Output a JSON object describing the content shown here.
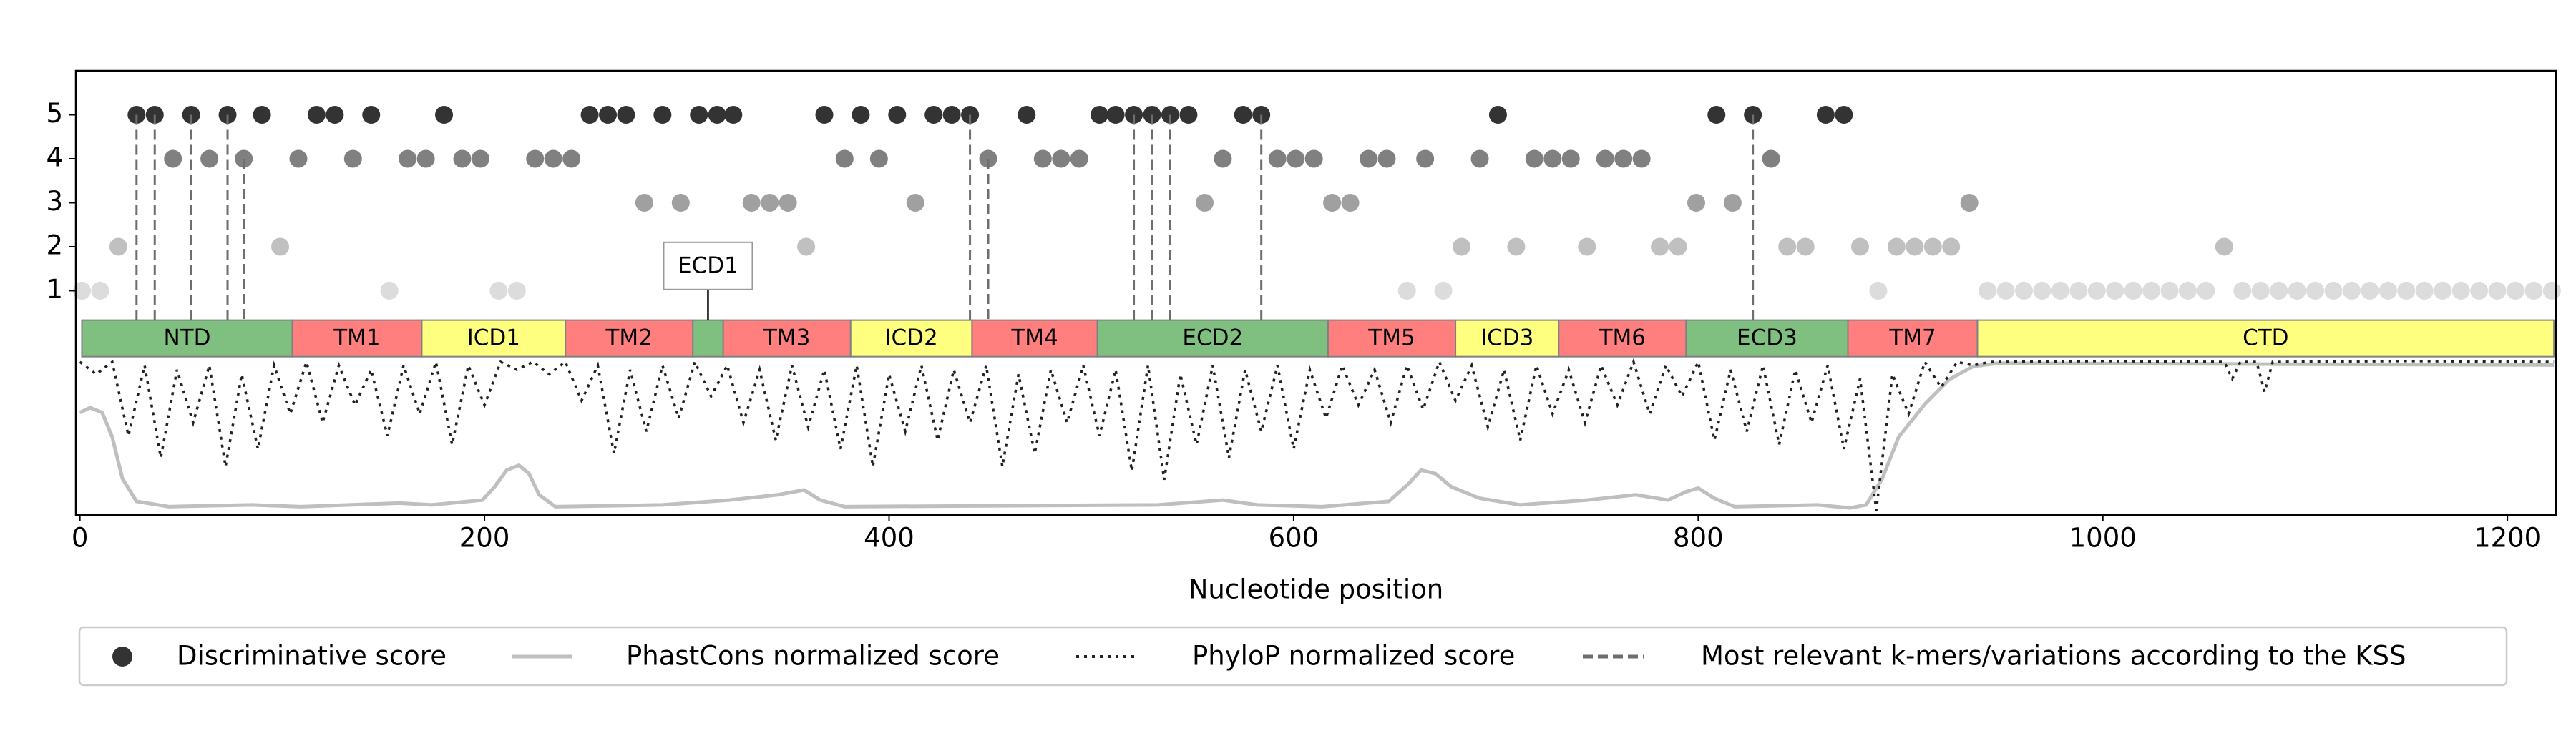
{
  "chart_data": {
    "type": "genome-track",
    "xlabel": "Nucleotide position",
    "xlim": [
      -2,
      1224
    ],
    "xticks": [
      0,
      200,
      400,
      600,
      800,
      1000,
      1200
    ],
    "ylim": [
      -4.1,
      6
    ],
    "yticks": [
      1,
      2,
      3,
      4,
      5
    ],
    "score_colors": [
      "#dcdcdc",
      "#c0c0c0",
      "#a0a0a0",
      "#808080",
      "#333333"
    ],
    "domains": [
      {
        "name": "NTD",
        "start": 1,
        "end": 105,
        "color": "#7fbf7f"
      },
      {
        "name": "TM1",
        "start": 105,
        "end": 169,
        "color": "#ff7f7f"
      },
      {
        "name": "ICD1",
        "start": 169,
        "end": 240,
        "color": "#ffff7f"
      },
      {
        "name": "TM2",
        "start": 240,
        "end": 303,
        "color": "#ff7f7f"
      },
      {
        "name": "ECD1",
        "start": 303,
        "end": 318,
        "color": "#7fbf7f"
      },
      {
        "name": "TM3",
        "start": 318,
        "end": 381,
        "color": "#ff7f7f"
      },
      {
        "name": "ICD2",
        "start": 381,
        "end": 441,
        "color": "#ffff7f"
      },
      {
        "name": "TM4",
        "start": 441,
        "end": 503,
        "color": "#ff7f7f"
      },
      {
        "name": "ECD2",
        "start": 503,
        "end": 617,
        "color": "#7fbf7f"
      },
      {
        "name": "TM5",
        "start": 617,
        "end": 680,
        "color": "#ff7f7f"
      },
      {
        "name": "ICD3",
        "start": 680,
        "end": 731,
        "color": "#ffff7f"
      },
      {
        "name": "TM6",
        "start": 731,
        "end": 794,
        "color": "#ff7f7f"
      },
      {
        "name": "ECD3",
        "start": 794,
        "end": 874,
        "color": "#7fbf7f"
      },
      {
        "name": "TM7",
        "start": 874,
        "end": 938,
        "color": "#ff7f7f"
      },
      {
        "name": "CTD",
        "start": 938,
        "end": 1223,
        "color": "#ffff7f"
      }
    ],
    "series": [
      {
        "name": "Discriminative score",
        "kind": "scatter",
        "color": "#333333",
        "x": [
          28,
          37,
          55,
          73,
          90,
          117,
          126,
          144,
          180,
          252,
          261,
          270,
          288,
          306,
          315,
          323,
          368,
          386,
          404,
          422,
          431,
          440,
          468,
          504,
          512,
          521,
          530,
          539,
          548,
          575,
          584,
          701,
          809,
          827,
          863,
          872,
          46,
          64,
          81,
          108,
          135,
          162,
          171,
          189,
          198,
          225,
          234,
          243,
          378,
          395,
          449,
          476,
          485,
          494,
          565,
          592,
          601,
          610,
          637,
          646,
          665,
          692,
          719,
          728,
          737,
          754,
          763,
          772,
          836,
          279,
          297,
          332,
          341,
          350,
          413,
          556,
          619,
          628,
          799,
          817,
          934,
          19,
          99,
          359,
          683,
          710,
          745,
          781,
          790,
          844,
          853,
          880,
          898,
          907,
          916,
          925,
          1060,
          1,
          10,
          153,
          207,
          216,
          656,
          674,
          889,
          943,
          952,
          961,
          970,
          979,
          988,
          997,
          1006,
          1015,
          1024,
          1033,
          1042,
          1051,
          1069,
          1078,
          1087,
          1096,
          1105,
          1114,
          1123,
          1132,
          1141,
          1150,
          1159,
          1168,
          1177,
          1186,
          1195,
          1204,
          1213,
          1222
        ],
        "values": [
          5,
          5,
          5,
          5,
          5,
          5,
          5,
          5,
          5,
          5,
          5,
          5,
          5,
          5,
          5,
          5,
          5,
          5,
          5,
          5,
          5,
          5,
          5,
          5,
          5,
          5,
          5,
          5,
          5,
          5,
          5,
          5,
          5,
          5,
          5,
          5,
          4,
          4,
          4,
          4,
          4,
          4,
          4,
          4,
          4,
          4,
          4,
          4,
          4,
          4,
          4,
          4,
          4,
          4,
          4,
          4,
          4,
          4,
          4,
          4,
          4,
          4,
          4,
          4,
          4,
          4,
          4,
          4,
          4,
          3,
          3,
          3,
          3,
          3,
          3,
          3,
          3,
          3,
          3,
          3,
          3,
          2,
          2,
          2,
          2,
          2,
          2,
          2,
          2,
          2,
          2,
          2,
          2,
          2,
          2,
          2,
          2,
          1,
          1,
          1,
          1,
          1,
          1,
          1,
          1,
          1,
          1,
          1,
          1,
          1,
          1,
          1,
          1,
          1,
          1,
          1,
          1,
          1,
          1,
          1,
          1,
          1,
          1,
          1,
          1,
          1,
          1,
          1,
          1,
          1,
          1,
          1,
          1,
          1,
          1,
          1
        ]
      },
      {
        "name": "PhastCons normalized score",
        "kind": "line",
        "dash": "solid",
        "color": "#bfbfbf",
        "x": [
          0,
          5,
          11,
          16,
          21,
          28,
          44,
          85,
          109,
          158,
          174,
          199,
          205,
          211,
          217,
          222,
          227,
          235,
          288,
          321,
          345,
          358,
          366,
          378,
          533,
          565,
          582,
          614,
          647,
          657,
          663,
          670,
          678,
          692,
          712,
          745,
          769,
          785,
          794,
          800,
          808,
          818,
          859,
          875,
          883,
          891,
          899,
          912,
          924,
          936,
          948,
          1223
        ],
        "values": [
          -1.77,
          -1.66,
          -1.77,
          -2.33,
          -3.27,
          -3.79,
          -3.91,
          -3.87,
          -3.91,
          -3.83,
          -3.87,
          -3.76,
          -3.46,
          -3.08,
          -2.97,
          -3.16,
          -3.64,
          -3.91,
          -3.87,
          -3.76,
          -3.64,
          -3.53,
          -3.76,
          -3.91,
          -3.87,
          -3.76,
          -3.87,
          -3.91,
          -3.79,
          -3.38,
          -3.08,
          -3.16,
          -3.46,
          -3.72,
          -3.87,
          -3.76,
          -3.64,
          -3.76,
          -3.57,
          -3.49,
          -3.72,
          -3.91,
          -3.87,
          -3.94,
          -3.87,
          -3.27,
          -2.33,
          -1.58,
          -1.02,
          -0.72,
          -0.65,
          -0.69
        ]
      },
      {
        "name": "PhyloP normalized score",
        "kind": "line",
        "dash": "dotted",
        "color": "#222222",
        "x": [
          0,
          8,
          16,
          24,
          32,
          40,
          48,
          56,
          64,
          72,
          80,
          88,
          96,
          104,
          112,
          120,
          128,
          136,
          144,
          152,
          160,
          168,
          176,
          184,
          192,
          200,
          208,
          216,
          224,
          232,
          240,
          248,
          256,
          264,
          272,
          280,
          288,
          296,
          304,
          312,
          320,
          328,
          336,
          344,
          352,
          360,
          368,
          376,
          384,
          392,
          400,
          408,
          416,
          424,
          432,
          440,
          448,
          456,
          464,
          472,
          480,
          488,
          496,
          504,
          512,
          520,
          528,
          536,
          544,
          552,
          560,
          568,
          576,
          584,
          592,
          600,
          608,
          616,
          624,
          632,
          640,
          648,
          656,
          664,
          672,
          680,
          688,
          696,
          704,
          712,
          720,
          728,
          736,
          744,
          752,
          760,
          768,
          776,
          784,
          792,
          800,
          808,
          816,
          824,
          832,
          840,
          848,
          856,
          864,
          872,
          880,
          888,
          896,
          904,
          912,
          920,
          928,
          936,
          944,
          1000,
          1060,
          1064,
          1068,
          1076,
          1080,
          1084,
          1150,
          1223
        ],
        "values": [
          -0.62,
          -0.9,
          -0.62,
          -2.3,
          -0.7,
          -2.8,
          -0.8,
          -2.0,
          -0.7,
          -3.0,
          -0.9,
          -2.6,
          -0.7,
          -1.8,
          -0.62,
          -2.0,
          -0.7,
          -1.6,
          -0.8,
          -2.3,
          -0.7,
          -1.8,
          -0.62,
          -2.5,
          -0.7,
          -1.6,
          -0.62,
          -0.8,
          -0.62,
          -0.9,
          -0.62,
          -1.5,
          -0.7,
          -2.7,
          -0.8,
          -2.2,
          -0.7,
          -1.9,
          -0.62,
          -1.4,
          -0.7,
          -2.0,
          -0.8,
          -2.4,
          -0.7,
          -2.1,
          -0.8,
          -2.6,
          -0.7,
          -3.0,
          -0.9,
          -2.2,
          -0.7,
          -2.4,
          -0.8,
          -2.0,
          -0.7,
          -3.0,
          -0.9,
          -2.7,
          -0.8,
          -2.0,
          -0.7,
          -2.3,
          -0.8,
          -3.1,
          -0.7,
          -3.3,
          -0.9,
          -2.5,
          -0.7,
          -2.8,
          -0.8,
          -2.2,
          -0.7,
          -2.6,
          -0.8,
          -1.9,
          -0.7,
          -1.6,
          -0.8,
          -2.0,
          -0.7,
          -1.7,
          -0.62,
          -1.5,
          -0.7,
          -2.1,
          -0.8,
          -2.4,
          -0.7,
          -1.8,
          -0.8,
          -2.0,
          -0.7,
          -1.6,
          -0.62,
          -1.8,
          -0.7,
          -1.4,
          -0.62,
          -2.4,
          -0.8,
          -2.2,
          -0.7,
          -2.5,
          -0.8,
          -2.0,
          -0.7,
          -2.6,
          -1.0,
          -4.0,
          -0.9,
          -1.8,
          -0.62,
          -1.2,
          -0.62,
          -0.7,
          -0.62,
          -0.6,
          -0.62,
          -1.0,
          -0.62,
          -0.62,
          -1.3,
          -0.62,
          -0.6,
          -0.62
        ]
      },
      {
        "name": "Most relevant k-mers/variations according to the KSS",
        "kind": "vlines",
        "dash": "dashed",
        "color": "#6e6e6e",
        "x": [
          28,
          37,
          55,
          73,
          81,
          440,
          449,
          521,
          530,
          539,
          584,
          827
        ],
        "values": [
          5,
          5,
          5,
          5,
          4,
          5,
          4,
          5,
          5,
          5,
          5,
          5
        ]
      }
    ]
  }
}
